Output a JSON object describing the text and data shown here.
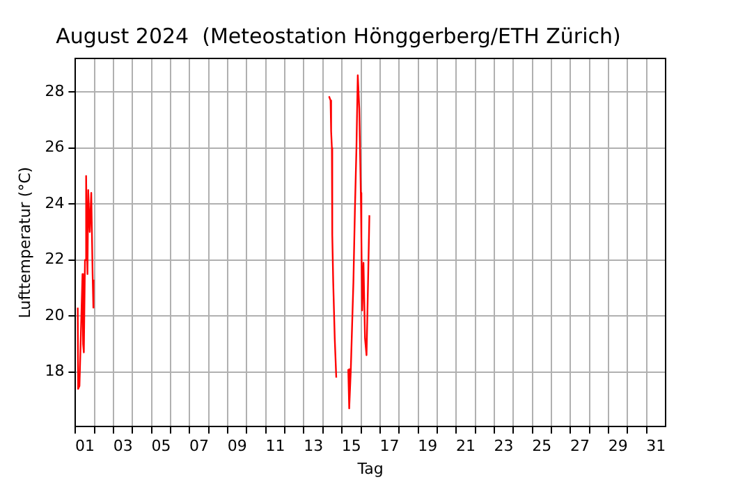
{
  "chart_data": {
    "type": "line",
    "title": "August 2024  (Meteostation Hönggerberg/ETH Zürich)",
    "xlabel": "Tag",
    "ylabel": "Lufttemperatur (°C)",
    "x": [
      1.12,
      1.14,
      1.21,
      1.29,
      1.37,
      1.4,
      1.44,
      1.5,
      1.56,
      1.6,
      1.63,
      1.67,
      1.75,
      1.83,
      1.9,
      1.94,
      1.95,
      8.0,
      14.32,
      14.4,
      14.43,
      14.47,
      14.49,
      14.54,
      14.62,
      14.7,
      15.0,
      15.33,
      15.38,
      15.46,
      15.53,
      15.6,
      15.68,
      15.76,
      15.83,
      15.91,
      15.99,
      16.02,
      16.06,
      16.13,
      16.21,
      16.29,
      16.37,
      16.44
    ],
    "series": [
      {
        "color": "#ff0000",
        "values": [
          20.3,
          17.4,
          17.5,
          19.5,
          21.5,
          19.0,
          18.7,
          22.0,
          25.0,
          22.5,
          21.5,
          24.5,
          23.0,
          24.4,
          21.5,
          20.3,
          21.3,
          null,
          27.85,
          27.7,
          26.6,
          26.0,
          22.9,
          21.2,
          19.2,
          17.8,
          null,
          18.1,
          16.7,
          18.0,
          19.6,
          21.2,
          23.8,
          26.0,
          28.6,
          27.4,
          24.4,
          22.8,
          20.2,
          21.9,
          19.2,
          18.6,
          21.2,
          23.6
        ]
      }
    ],
    "xlim": [
      1,
      32
    ],
    "xticks": [
      {
        "value": 1,
        "label": null
      },
      {
        "value": 1.5,
        "label": "01"
      },
      {
        "value": 2,
        "label": null
      },
      {
        "value": 3,
        "label": null
      },
      {
        "value": 3.5,
        "label": "03"
      },
      {
        "value": 4,
        "label": null
      },
      {
        "value": 5,
        "label": null
      },
      {
        "value": 5.5,
        "label": "05"
      },
      {
        "value": 6,
        "label": null
      },
      {
        "value": 7,
        "label": null
      },
      {
        "value": 7.5,
        "label": "07"
      },
      {
        "value": 8,
        "label": null
      },
      {
        "value": 9,
        "label": null
      },
      {
        "value": 9.5,
        "label": "09"
      },
      {
        "value": 10,
        "label": null
      },
      {
        "value": 11,
        "label": null
      },
      {
        "value": 11.5,
        "label": "11"
      },
      {
        "value": 12,
        "label": null
      },
      {
        "value": 13,
        "label": null
      },
      {
        "value": 13.5,
        "label": "13"
      },
      {
        "value": 14,
        "label": null
      },
      {
        "value": 15,
        "label": null
      },
      {
        "value": 15.5,
        "label": "15"
      },
      {
        "value": 16,
        "label": null
      },
      {
        "value": 17,
        "label": null
      },
      {
        "value": 17.5,
        "label": "17"
      },
      {
        "value": 18,
        "label": null
      },
      {
        "value": 19,
        "label": null
      },
      {
        "value": 19.5,
        "label": "19"
      },
      {
        "value": 20,
        "label": null
      },
      {
        "value": 21,
        "label": null
      },
      {
        "value": 21.5,
        "label": "21"
      },
      {
        "value": 22,
        "label": null
      },
      {
        "value": 23,
        "label": null
      },
      {
        "value": 23.5,
        "label": "23"
      },
      {
        "value": 24,
        "label": null
      },
      {
        "value": 25,
        "label": null
      },
      {
        "value": 25.5,
        "label": "25"
      },
      {
        "value": 26,
        "label": null
      },
      {
        "value": 27,
        "label": null
      },
      {
        "value": 27.5,
        "label": "27"
      },
      {
        "value": 28,
        "label": null
      },
      {
        "value": 29,
        "label": null
      },
      {
        "value": 29.5,
        "label": "29"
      },
      {
        "value": 30,
        "label": null
      },
      {
        "value": 31,
        "label": null
      },
      {
        "value": 31.5,
        "label": "31"
      }
    ],
    "ylim": [
      16.05,
      29.2
    ],
    "yticks": [
      18,
      20,
      22,
      24,
      26,
      28
    ],
    "grid": true,
    "legend": false,
    "marker": "none",
    "line_style": "solid"
  }
}
